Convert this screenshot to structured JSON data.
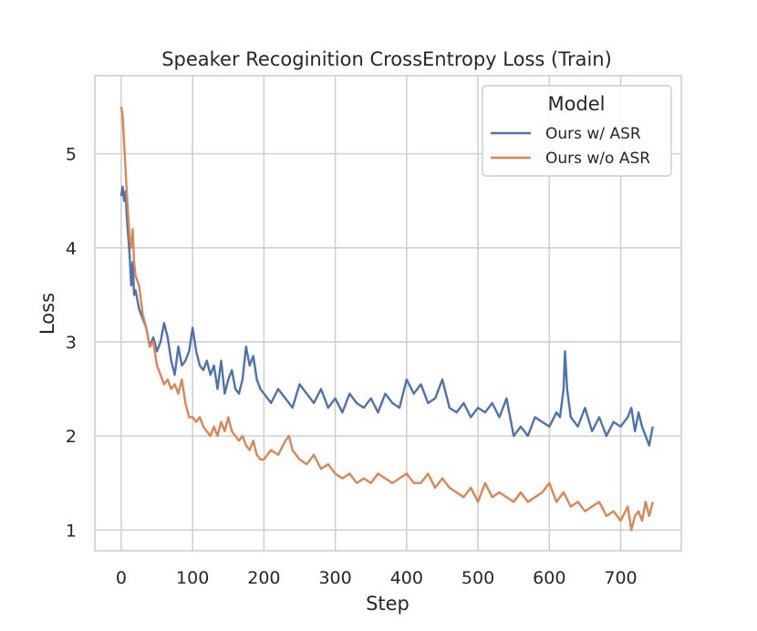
{
  "chart_data": {
    "type": "line",
    "title": "Speaker Recoginition CrossEntropy Loss (Train)",
    "xlabel": "Step",
    "ylabel": "Loss",
    "xlim": [
      -37,
      785
    ],
    "ylim": [
      0.78,
      5.83
    ],
    "xticks": [
      0,
      100,
      200,
      300,
      400,
      500,
      600,
      700
    ],
    "yticks": [
      1,
      2,
      3,
      4,
      5
    ],
    "grid": true,
    "legend": {
      "title": "Model",
      "position": "top-right"
    },
    "series": [
      {
        "name": "Ours w/ ASR",
        "color": "#4c72b0",
        "x": [
          0,
          2,
          4,
          6,
          8,
          10,
          12,
          14,
          16,
          18,
          20,
          25,
          30,
          35,
          40,
          45,
          50,
          55,
          60,
          65,
          70,
          75,
          80,
          85,
          90,
          95,
          100,
          105,
          110,
          115,
          120,
          125,
          130,
          135,
          140,
          145,
          150,
          155,
          160,
          165,
          170,
          175,
          180,
          185,
          190,
          195,
          200,
          210,
          220,
          230,
          240,
          250,
          260,
          270,
          280,
          290,
          300,
          310,
          320,
          330,
          340,
          350,
          360,
          370,
          380,
          390,
          400,
          410,
          420,
          430,
          440,
          450,
          460,
          470,
          480,
          490,
          500,
          510,
          520,
          530,
          540,
          550,
          560,
          570,
          580,
          590,
          600,
          610,
          615,
          620,
          622,
          625,
          630,
          640,
          650,
          660,
          670,
          680,
          690,
          700,
          710,
          715,
          720,
          725,
          730,
          735,
          740,
          745
        ],
        "values": [
          4.55,
          4.65,
          4.5,
          4.6,
          4.3,
          4.1,
          3.9,
          3.6,
          3.85,
          3.5,
          3.55,
          3.35,
          3.25,
          3.15,
          2.95,
          3.05,
          2.9,
          3.0,
          3.2,
          3.05,
          2.8,
          2.65,
          2.95,
          2.75,
          2.8,
          2.9,
          3.15,
          2.9,
          2.75,
          2.7,
          2.8,
          2.65,
          2.75,
          2.5,
          2.8,
          2.45,
          2.6,
          2.7,
          2.5,
          2.45,
          2.6,
          2.95,
          2.75,
          2.85,
          2.6,
          2.5,
          2.45,
          2.35,
          2.5,
          2.4,
          2.3,
          2.55,
          2.45,
          2.35,
          2.5,
          2.3,
          2.4,
          2.25,
          2.45,
          2.35,
          2.3,
          2.4,
          2.25,
          2.45,
          2.35,
          2.3,
          2.6,
          2.45,
          2.55,
          2.35,
          2.4,
          2.6,
          2.3,
          2.25,
          2.35,
          2.2,
          2.3,
          2.25,
          2.35,
          2.2,
          2.4,
          2.0,
          2.1,
          2.0,
          2.2,
          2.15,
          2.1,
          2.25,
          2.2,
          2.5,
          2.9,
          2.5,
          2.2,
          2.1,
          2.3,
          2.05,
          2.2,
          2.0,
          2.15,
          2.1,
          2.2,
          2.3,
          2.05,
          2.25,
          2.1,
          2.0,
          1.9,
          2.1
        ]
      },
      {
        "name": "Ours w/o ASR",
        "color": "#dd8452",
        "x": [
          0,
          2,
          4,
          6,
          8,
          10,
          12,
          14,
          16,
          18,
          20,
          25,
          30,
          35,
          40,
          45,
          50,
          55,
          60,
          65,
          70,
          75,
          80,
          85,
          90,
          95,
          100,
          105,
          110,
          115,
          120,
          125,
          130,
          135,
          140,
          145,
          150,
          155,
          160,
          165,
          170,
          175,
          180,
          185,
          190,
          195,
          200,
          210,
          220,
          230,
          235,
          240,
          250,
          260,
          270,
          280,
          290,
          300,
          310,
          320,
          330,
          340,
          350,
          360,
          370,
          380,
          390,
          400,
          410,
          420,
          430,
          440,
          450,
          460,
          470,
          480,
          490,
          500,
          510,
          520,
          530,
          540,
          550,
          560,
          570,
          580,
          590,
          600,
          610,
          620,
          630,
          640,
          650,
          660,
          670,
          680,
          690,
          700,
          710,
          715,
          720,
          725,
          730,
          735,
          740,
          745
        ],
        "values": [
          5.5,
          5.4,
          5.1,
          4.85,
          4.55,
          4.3,
          4.1,
          4.0,
          4.2,
          3.85,
          3.7,
          3.6,
          3.3,
          3.15,
          2.95,
          3.0,
          2.75,
          2.65,
          2.55,
          2.6,
          2.5,
          2.55,
          2.45,
          2.6,
          2.35,
          2.2,
          2.2,
          2.15,
          2.2,
          2.1,
          2.05,
          2.0,
          2.1,
          2.0,
          2.15,
          2.05,
          2.2,
          2.05,
          2.0,
          1.95,
          2.0,
          1.9,
          1.85,
          1.95,
          1.8,
          1.75,
          1.75,
          1.85,
          1.8,
          1.95,
          2.0,
          1.85,
          1.75,
          1.7,
          1.8,
          1.65,
          1.7,
          1.6,
          1.55,
          1.6,
          1.5,
          1.55,
          1.5,
          1.6,
          1.55,
          1.5,
          1.55,
          1.6,
          1.5,
          1.5,
          1.6,
          1.45,
          1.55,
          1.45,
          1.4,
          1.35,
          1.45,
          1.3,
          1.5,
          1.35,
          1.4,
          1.35,
          1.3,
          1.4,
          1.3,
          1.35,
          1.4,
          1.5,
          1.3,
          1.4,
          1.25,
          1.3,
          1.2,
          1.25,
          1.3,
          1.15,
          1.2,
          1.1,
          1.25,
          1.0,
          1.15,
          1.2,
          1.1,
          1.3,
          1.15,
          1.3
        ]
      }
    ]
  }
}
